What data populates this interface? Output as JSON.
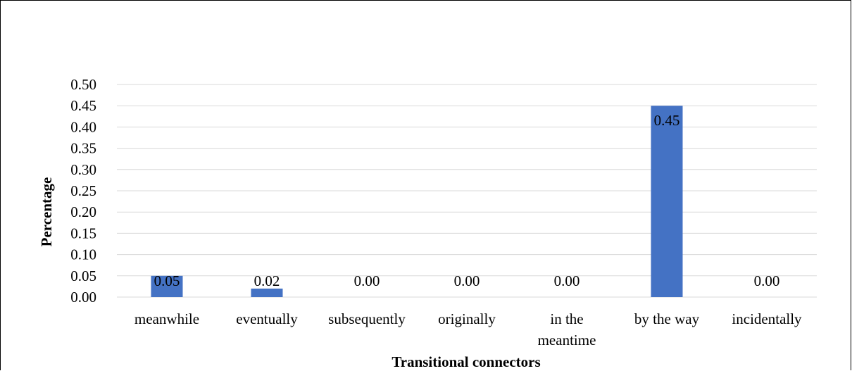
{
  "chart_data": {
    "type": "bar",
    "categories": [
      "meanwhile",
      "eventually",
      "subsequently",
      "originally",
      "in the meantime",
      "by the way",
      "incidentally"
    ],
    "category_lines": [
      [
        "meanwhile"
      ],
      [
        "eventually"
      ],
      [
        "subsequently"
      ],
      [
        "originally"
      ],
      [
        "in the",
        "meantime"
      ],
      [
        "by the way"
      ],
      [
        "incidentally"
      ]
    ],
    "values": [
      0.05,
      0.02,
      0.0,
      0.0,
      0.0,
      0.45,
      0.0
    ],
    "data_labels": [
      "0.05",
      "0.02",
      "0.00",
      "0.00",
      "0.00",
      "0.45",
      "0.00"
    ],
    "yticks": [
      "0.00",
      "0.05",
      "0.10",
      "0.15",
      "0.20",
      "0.25",
      "0.30",
      "0.35",
      "0.40",
      "0.45",
      "0.50"
    ],
    "ylim": [
      0,
      0.5
    ],
    "xlabel": "Transitional connectors",
    "ylabel": "Percentage",
    "grid": true,
    "bar_color": "#4472c4",
    "grid_color": "#d9d9d9"
  }
}
